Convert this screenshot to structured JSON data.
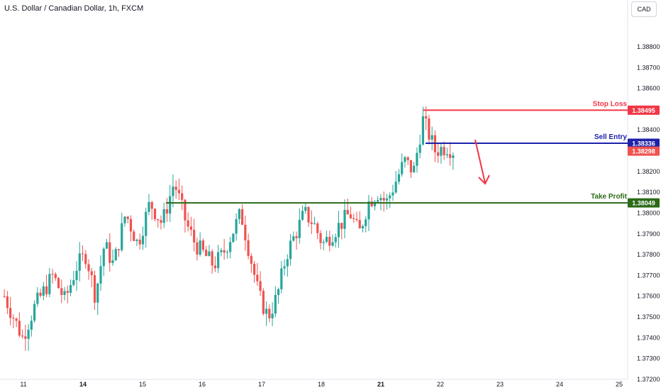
{
  "header": {
    "symbol_title": "U.S. Dollar / Canadian Dollar, 1h, FXCM",
    "currency_button": "CAD"
  },
  "colors": {
    "bull": "#26a69a",
    "bear": "#ef5350",
    "stop": "#f23645",
    "entry": "#1e22aa",
    "tp": "#2b6a17",
    "axis_text": "#131722"
  },
  "chart_data": {
    "type": "candlestick",
    "title": "U.S. Dollar / Canadian Dollar, 1h, FXCM",
    "ylim": [
      1.372,
      1.3895
    ],
    "y_ticks": [
      "1.38800",
      "1.38700",
      "1.38600",
      "1.38400",
      "1.38200",
      "1.38100",
      "1.38000",
      "1.37900",
      "1.37800",
      "1.37700",
      "1.37600",
      "1.37500",
      "1.37400",
      "1.37300",
      "1.37200"
    ],
    "x_ticks": [
      "11",
      "14",
      "15",
      "16",
      "17",
      "18",
      "21",
      "22",
      "23",
      "24",
      "25"
    ],
    "grid": false,
    "levels": [
      {
        "label": "Stop Loss",
        "price": 1.38495,
        "price_label": "1.38495"
      },
      {
        "label": "Sell Entry",
        "price": 1.38336,
        "price_label": "1.38336"
      },
      {
        "label": "Take Profit",
        "price": 1.38049,
        "price_label": "1.38049"
      }
    ],
    "last_price_label": "1.38298",
    "last_price": 1.38298,
    "anchors": [
      [
        0,
        1.376
      ],
      [
        3,
        1.375
      ],
      [
        6,
        1.374
      ],
      [
        10,
        1.3755
      ],
      [
        16,
        1.377
      ],
      [
        20,
        1.3758
      ],
      [
        24,
        1.3775
      ],
      [
        27,
        1.378
      ],
      [
        30,
        1.376
      ],
      [
        33,
        1.3785
      ],
      [
        36,
        1.3775
      ],
      [
        40,
        1.38
      ],
      [
        44,
        1.3785
      ],
      [
        48,
        1.3805
      ],
      [
        52,
        1.3795
      ],
      [
        56,
        1.3815
      ],
      [
        60,
        1.3795
      ],
      [
        63,
        1.3785
      ],
      [
        66,
        1.378
      ],
      [
        69,
        1.3775
      ],
      [
        72,
        1.378
      ],
      [
        75,
        1.379
      ],
      [
        78,
        1.38
      ],
      [
        81,
        1.378
      ],
      [
        84,
        1.376
      ],
      [
        87,
        1.375
      ],
      [
        90,
        1.376
      ],
      [
        93,
        1.378
      ],
      [
        96,
        1.379
      ],
      [
        99,
        1.38
      ],
      [
        102,
        1.3795
      ],
      [
        105,
        1.3785
      ],
      [
        108,
        1.379
      ],
      [
        111,
        1.3795
      ],
      [
        114,
        1.38
      ],
      [
        117,
        1.379
      ],
      [
        120,
        1.3805
      ],
      [
        123,
        1.381
      ],
      [
        126,
        1.3805
      ],
      [
        129,
        1.3815
      ],
      [
        132,
        1.3825
      ],
      [
        135,
        1.382
      ],
      [
        138,
        1.3845
      ],
      [
        140,
        1.3838
      ],
      [
        142,
        1.383
      ],
      [
        144,
        1.3831
      ],
      [
        146,
        1.3832
      ],
      [
        148,
        1.383
      ]
    ]
  }
}
